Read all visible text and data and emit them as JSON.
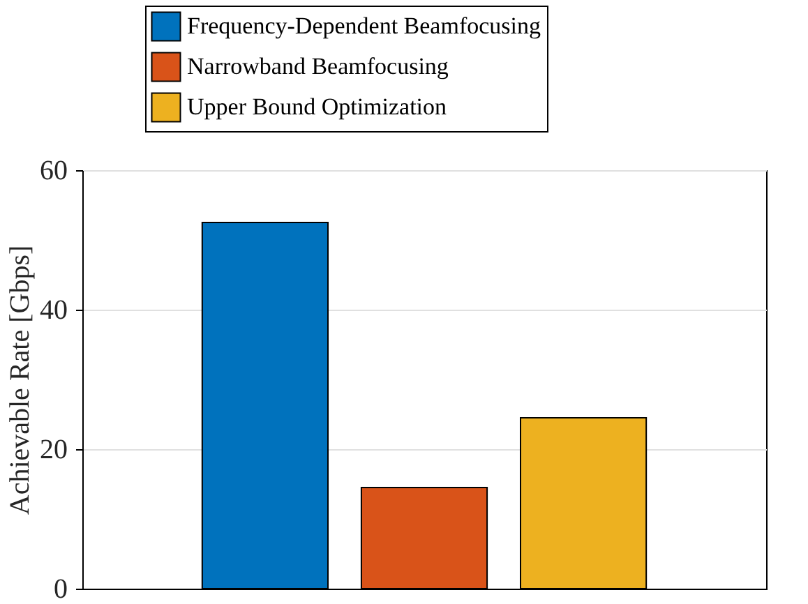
{
  "chart_data": {
    "type": "bar",
    "ylabel": "Achievable Rate [Gbps]",
    "categories": [
      null
    ],
    "series": [
      {
        "name": "Frequency-Dependent Beamfocusing",
        "color": "#0072bd",
        "values": [
          52.5
        ]
      },
      {
        "name": "Narrowband Beamfocusing",
        "color": "#d95319",
        "values": [
          14.5
        ]
      },
      {
        "name": "Upper Bound Optimization",
        "color": "#edb120",
        "values": [
          24.5
        ]
      }
    ],
    "ylim": [
      0,
      60
    ],
    "yticks": [
      0,
      20,
      40,
      60
    ],
    "grid": "y",
    "legend": "top",
    "tick_labels": "y"
  }
}
